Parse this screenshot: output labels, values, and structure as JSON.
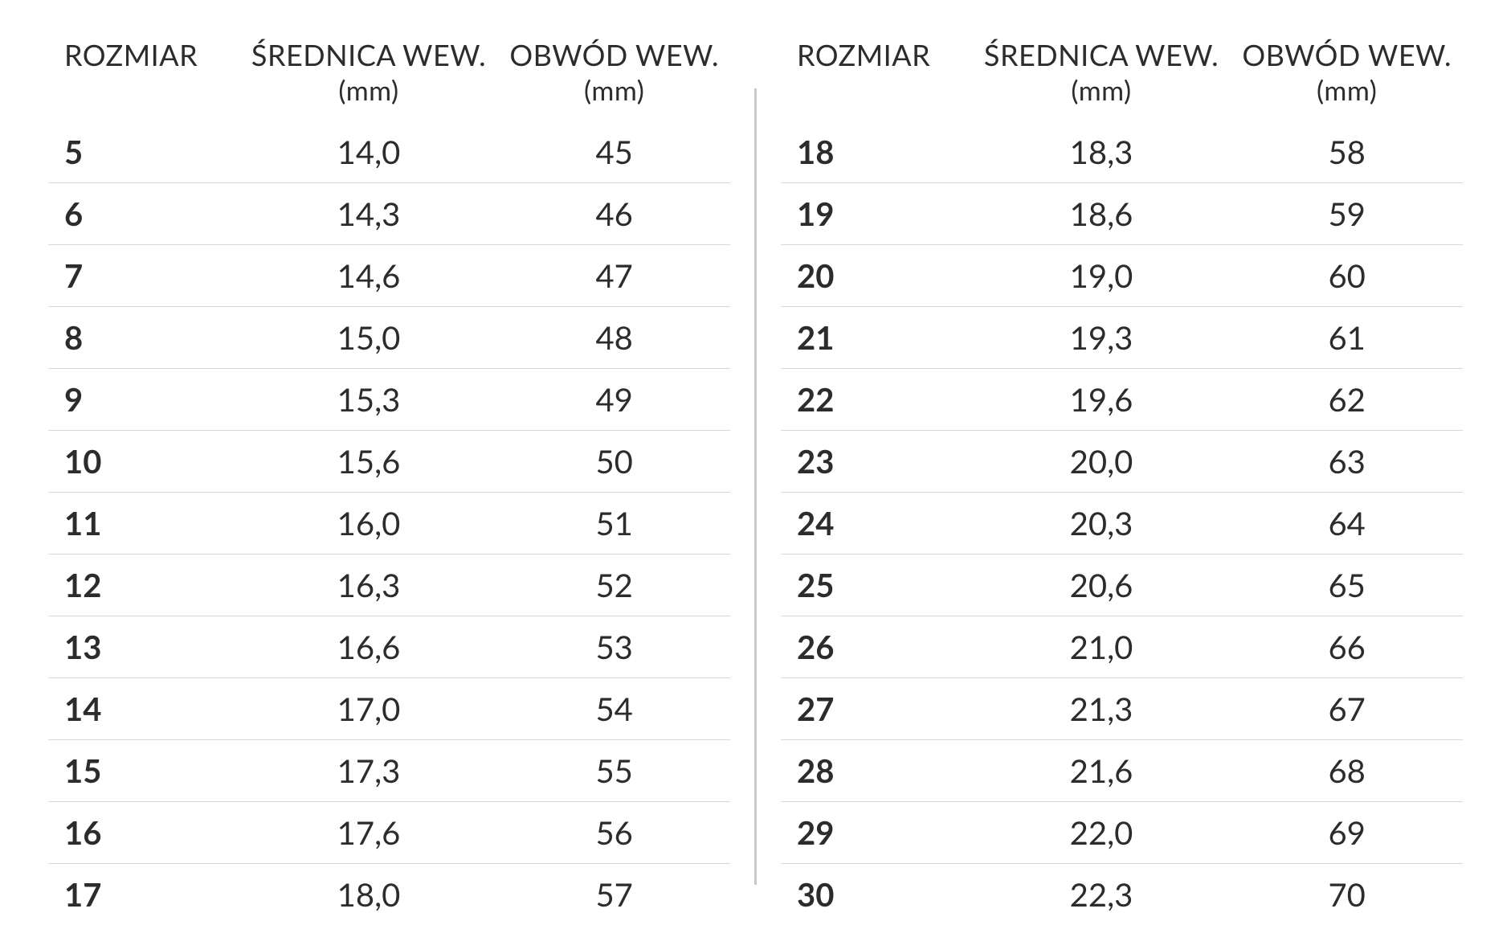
{
  "headers": {
    "size": {
      "line1": "ROZMIAR",
      "line2": ""
    },
    "dia": {
      "line1": "ŚREDNICA WEW.",
      "line2": "(mm)"
    },
    "circ": {
      "line1": "OBWÓD WEW.",
      "line2": "(mm)"
    }
  },
  "style": {
    "background_color": "#ffffff",
    "text_color": "#2c2c2c",
    "row_border_color": "#d8d8d8",
    "divider_color": "#c9c9c9",
    "header_fontsize_pt": 27,
    "cell_fontsize_pt": 30,
    "size_bold": true,
    "col_widths_pct": [
      28,
      38,
      34
    ]
  },
  "leftRows": [
    {
      "size": "5",
      "dia": "14,0",
      "circ": "45"
    },
    {
      "size": "6",
      "dia": "14,3",
      "circ": "46"
    },
    {
      "size": "7",
      "dia": "14,6",
      "circ": "47"
    },
    {
      "size": "8",
      "dia": "15,0",
      "circ": "48"
    },
    {
      "size": "9",
      "dia": "15,3",
      "circ": "49"
    },
    {
      "size": "10",
      "dia": "15,6",
      "circ": "50"
    },
    {
      "size": "11",
      "dia": "16,0",
      "circ": "51"
    },
    {
      "size": "12",
      "dia": "16,3",
      "circ": "52"
    },
    {
      "size": "13",
      "dia": "16,6",
      "circ": "53"
    },
    {
      "size": "14",
      "dia": "17,0",
      "circ": "54"
    },
    {
      "size": "15",
      "dia": "17,3",
      "circ": "55"
    },
    {
      "size": "16",
      "dia": "17,6",
      "circ": "56"
    },
    {
      "size": "17",
      "dia": "18,0",
      "circ": "57"
    }
  ],
  "rightRows": [
    {
      "size": "18",
      "dia": "18,3",
      "circ": "58"
    },
    {
      "size": "19",
      "dia": "18,6",
      "circ": "59"
    },
    {
      "size": "20",
      "dia": "19,0",
      "circ": "60"
    },
    {
      "size": "21",
      "dia": "19,3",
      "circ": "61"
    },
    {
      "size": "22",
      "dia": "19,6",
      "circ": "62"
    },
    {
      "size": "23",
      "dia": "20,0",
      "circ": "63"
    },
    {
      "size": "24",
      "dia": "20,3",
      "circ": "64"
    },
    {
      "size": "25",
      "dia": "20,6",
      "circ": "65"
    },
    {
      "size": "26",
      "dia": "21,0",
      "circ": "66"
    },
    {
      "size": "27",
      "dia": "21,3",
      "circ": "67"
    },
    {
      "size": "28",
      "dia": "21,6",
      "circ": "68"
    },
    {
      "size": "29",
      "dia": "22,0",
      "circ": "69"
    },
    {
      "size": "30",
      "dia": "22,3",
      "circ": "70"
    }
  ]
}
